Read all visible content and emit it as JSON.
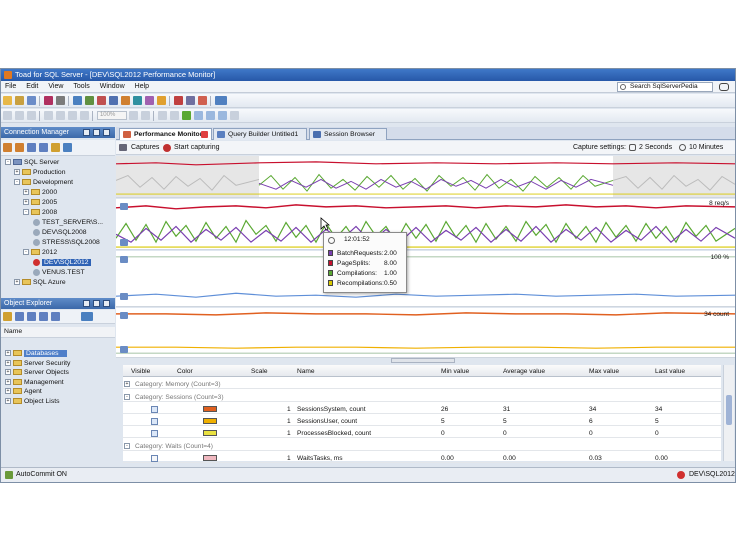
{
  "window": {
    "title": "Toad for SQL Server - [DEV\\SQL2012 Performance Monitor]"
  },
  "menu": [
    "File",
    "Edit",
    "View",
    "Tools",
    "Window",
    "Help"
  ],
  "search": {
    "placeholder": "Search SqlServerPedia"
  },
  "toolbar": {
    "zoom_value": "100%"
  },
  "connection_manager": {
    "title": "Connection Manager",
    "tree": [
      {
        "label": "SQL Server",
        "level": 0,
        "type": "server-group"
      },
      {
        "label": "Production",
        "level": 1,
        "type": "folder"
      },
      {
        "label": "Development",
        "level": 1,
        "type": "folder"
      },
      {
        "label": "2000",
        "level": 2,
        "type": "folder"
      },
      {
        "label": "2005",
        "level": 2,
        "type": "folder"
      },
      {
        "label": "2008",
        "level": 2,
        "type": "folder"
      },
      {
        "label": "TEST_SERVER\\S...",
        "level": 3,
        "type": "server"
      },
      {
        "label": "DEV\\SQL2008",
        "level": 3,
        "type": "server"
      },
      {
        "label": "STRESS\\SQL2008",
        "level": 3,
        "type": "server"
      },
      {
        "label": "2012",
        "level": 2,
        "type": "folder"
      },
      {
        "label": "DEV\\SQL2012",
        "level": 3,
        "type": "server-selected"
      },
      {
        "label": "VENUS.TEST",
        "level": 3,
        "type": "server"
      },
      {
        "label": "SQL Azure",
        "level": 1,
        "type": "folder"
      }
    ]
  },
  "object_explorer": {
    "title": "Object Explorer",
    "column_header": "Name",
    "items": [
      "Databases",
      "Server Security",
      "Server Objects",
      "Management",
      "Agent",
      "Object Lists"
    ]
  },
  "tabs": [
    {
      "label": "Performance Monitor",
      "active": true
    },
    {
      "label": "Query Builder Untitled1",
      "active": false
    },
    {
      "label": "Session Browser",
      "active": false
    }
  ],
  "capture_bar": {
    "captures": "Captures",
    "start": "Start capturing",
    "settings_label": "Capture settings:",
    "interval": "2 Seconds",
    "window": "10 Minutes"
  },
  "charts": {
    "chart1_label": "8 req/s",
    "chart2_label": "100 %",
    "chart3_label": "34 count"
  },
  "tooltip": {
    "time": "12:01:52",
    "rows": [
      {
        "name": "BatchRequests:",
        "value": "2.00",
        "color": "#7a3fb0"
      },
      {
        "name": "PageSplits:",
        "value": "8.00",
        "color": "#c8102e"
      },
      {
        "name": "Compilations:",
        "value": "1.00",
        "color": "#5aa832"
      },
      {
        "name": "Recompilations:",
        "value": "0.50",
        "color": "#d8c800"
      }
    ]
  },
  "grid": {
    "headers": [
      "Visible",
      "Color",
      "Scale",
      "Name",
      "Min value",
      "Average value",
      "Max value",
      "Last value"
    ],
    "categories": [
      "Category: Memory (Count=3)",
      "Category: Sessions (Count=3)",
      "Category: Waits (Count=4)"
    ],
    "rows": [
      {
        "scale": "1",
        "name": "SessionsSystem, count",
        "min": "26",
        "avg": "31",
        "max": "34",
        "last": "34",
        "color": "#e06020"
      },
      {
        "scale": "1",
        "name": "SessionsUser, count",
        "min": "5",
        "avg": "5",
        "max": "6",
        "last": "5",
        "color": "#f0b000"
      },
      {
        "scale": "1",
        "name": "ProcessesBlocked, count",
        "min": "0",
        "avg": "0",
        "max": "0",
        "last": "0",
        "color": "#e8e040"
      },
      {
        "scale": "1",
        "name": "WaitsTasks, ms",
        "min": "0.00",
        "avg": "0.00",
        "max": "0.03",
        "last": "0.00",
        "color": "#f0b8c0"
      }
    ]
  },
  "status": {
    "autocommit": "AutoCommit ON",
    "connection": "DEV\\SQL2012"
  }
}
